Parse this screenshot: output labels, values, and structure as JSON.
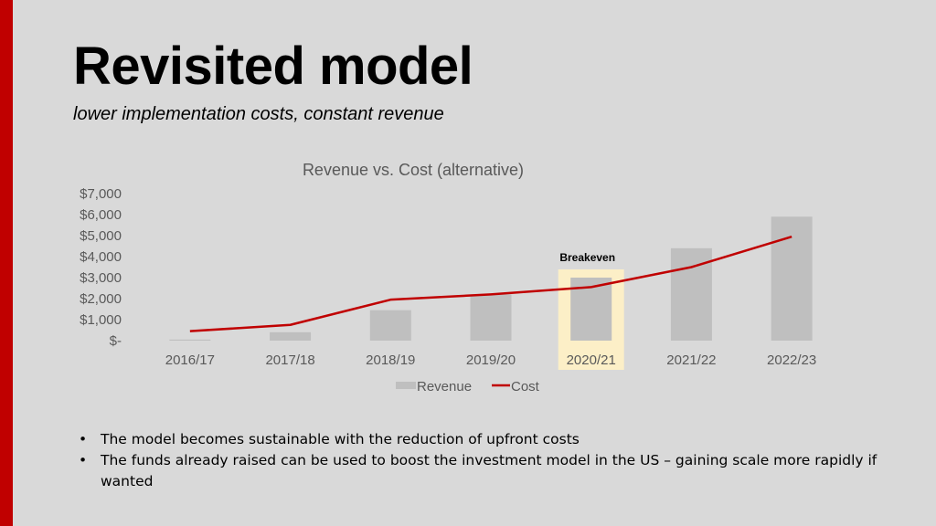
{
  "slide": {
    "title": "Revisited model",
    "subtitle": "lower implementation costs, constant revenue",
    "bullets": [
      "The model becomes sustainable with the reduction of upfront costs",
      "The funds already raised can be used to boost the investment model in the US – gaining scale more rapidly if wanted"
    ],
    "accent_color": "#c00000"
  },
  "chart_data": {
    "type": "bar",
    "title": "Revenue vs. Cost (alternative)",
    "categories": [
      "2016/17",
      "2017/18",
      "2018/19",
      "2019/20",
      "2020/21",
      "2021/22",
      "2022/23"
    ],
    "y_tick_labels": [
      "$-",
      "$1,000",
      "$2,000",
      "$3,000",
      "$4,000",
      "$5,000",
      "$6,000",
      "$7,000"
    ],
    "ylim": [
      0,
      7000
    ],
    "series": [
      {
        "name": "Revenue",
        "kind": "bar",
        "color": "#bfbfbf",
        "values": [
          50,
          400,
          1450,
          2200,
          3000,
          4400,
          5900
        ]
      },
      {
        "name": "Cost",
        "kind": "line",
        "color": "#c00000",
        "values": [
          450,
          750,
          1950,
          2200,
          2550,
          3500,
          4950
        ]
      }
    ],
    "annotation": {
      "text": "Breakeven",
      "category": "2020/21",
      "highlight_color": "#fcefc7"
    },
    "legend_position": "bottom",
    "grid": false
  }
}
